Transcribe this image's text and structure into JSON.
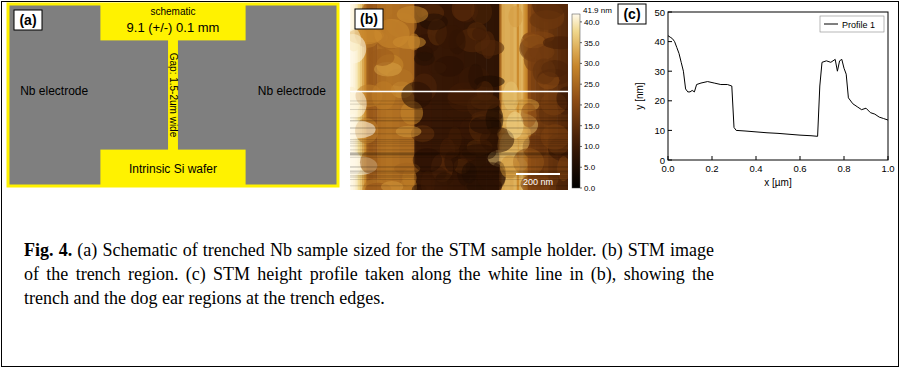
{
  "schematic": {
    "label": "(a)",
    "title": "schematic",
    "dimension": "9.1 (+/-) 0.1 mm",
    "gap": "Gap: 1.5-2um wide",
    "electrodes": [
      "Nb electrode",
      "Nb electrode"
    ],
    "substrate": "Intrinsic Si wafer"
  },
  "stm_image": {
    "label": "(b)",
    "scale_bar": "200 nm",
    "colorbar": {
      "range": [
        0,
        41.9
      ],
      "max_label": "41.9 nm",
      "ticks": [
        {
          "value": 40,
          "label": "40.0"
        },
        {
          "value": 35,
          "label": "35.0"
        },
        {
          "value": 30,
          "label": "30.0"
        },
        {
          "value": 25,
          "label": "25.0"
        },
        {
          "value": 20,
          "label": "20.0"
        },
        {
          "value": 15,
          "label": "15.0"
        },
        {
          "value": 10,
          "label": "10.0"
        },
        {
          "value": 5,
          "label": "5.0"
        },
        {
          "value": 0,
          "label": "0.0"
        }
      ]
    }
  },
  "chart_data": {
    "type": "line",
    "label": "(c)",
    "xlabel": "x [µm]",
    "ylabel": "y [nm]",
    "x": [
      0.0,
      0.01,
      0.02,
      0.03,
      0.04,
      0.05,
      0.06,
      0.07,
      0.08,
      0.09,
      0.1,
      0.11,
      0.12,
      0.13,
      0.15,
      0.18,
      0.21,
      0.24,
      0.27,
      0.29,
      0.3,
      0.31,
      0.35,
      0.4,
      0.45,
      0.5,
      0.55,
      0.6,
      0.65,
      0.68,
      0.69,
      0.7,
      0.72,
      0.74,
      0.76,
      0.77,
      0.78,
      0.79,
      0.8,
      0.81,
      0.82,
      0.84,
      0.86,
      0.88,
      0.9,
      0.92,
      0.94,
      0.96,
      0.98,
      1.0
    ],
    "series": [
      {
        "name": "Profile 1",
        "color": "#000000",
        "values": [
          42,
          41.5,
          41,
          40,
          38,
          36,
          33,
          30,
          24,
          23,
          23,
          23.5,
          23,
          25.5,
          26,
          26.5,
          26,
          25.5,
          25.5,
          25,
          11,
          10,
          9.8,
          9.5,
          9.2,
          9,
          8.7,
          8.4,
          8.2,
          8,
          25,
          33,
          33.5,
          33,
          34,
          30,
          33.5,
          34,
          31,
          29,
          21,
          19,
          18,
          17,
          17.5,
          16,
          15.5,
          14.5,
          14,
          13.5
        ]
      }
    ],
    "xlim": [
      0,
      1
    ],
    "ylim": [
      0,
      50
    ],
    "xticks": [
      {
        "value": 0,
        "label": "0.0"
      },
      0.2,
      0.4,
      0.6,
      0.8,
      {
        "value": 1,
        "label": "1.0"
      }
    ],
    "yticks": [
      0,
      10,
      20,
      30,
      40,
      50
    ],
    "grid": false,
    "legend": "upper right"
  },
  "caption": {
    "label": "Fig. 4.",
    "text": "(a) Schematic of trenched Nb sample sized for the STM sample holder. (b) STM image of the trench region. (c) STM height profile taken along the white line in (b), showing the trench and the dog ear regions at the trench edges."
  }
}
